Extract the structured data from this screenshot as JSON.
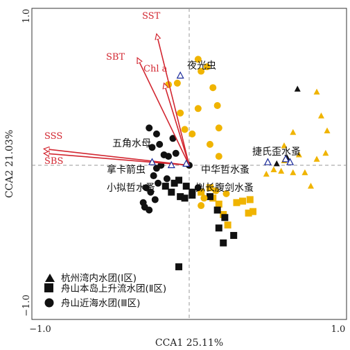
{
  "chart_data": {
    "type": "scatter",
    "xlabel": "CCA1 25.11%",
    "ylabel": "CCA2 21.03%",
    "xlim": [
      -1.0,
      1.0
    ],
    "ylim": [
      -1.0,
      1.0
    ],
    "xticks": [
      "−1.0",
      "1.0"
    ],
    "yticks": [
      "1.0",
      "−1.0"
    ],
    "grid": false,
    "legend_position": "bottom-left",
    "colors": {
      "accent": "#d22630",
      "orange": "#f0b400",
      "black": "#111111",
      "species": "#1a2a9a",
      "zero": "#999999"
    },
    "legend": [
      {
        "symbol": "triangle",
        "label": "杭州湾内水团(Ⅰ区)"
      },
      {
        "symbol": "square",
        "label": "舟山本岛上升流水团(Ⅱ区)"
      },
      {
        "symbol": "circle",
        "label": "舟山近海水团(Ⅲ区)"
      }
    ],
    "env_vectors": [
      {
        "name": "SST",
        "x": -0.22,
        "y": 0.88
      },
      {
        "name": "SBT",
        "x": -0.35,
        "y": 0.72
      },
      {
        "name": "Chl a",
        "x": -0.17,
        "y": 0.55
      },
      {
        "name": "SSS",
        "x": -0.98,
        "y": 0.11
      },
      {
        "name": "SBS",
        "x": -0.98,
        "y": 0.08
      }
    ],
    "species": [
      {
        "name": "夜光虫",
        "x": -0.06,
        "y": 0.6
      },
      {
        "name": "五角水母",
        "x": -0.25,
        "y": 0.02
      },
      {
        "name": "拿卡箭虫",
        "x": -0.12,
        "y": 0.0
      },
      {
        "name": "小拟哲水蚤",
        "x": -0.02,
        "y": 0.01
      },
      {
        "name": "中华哲水蚤",
        "x": 0.53,
        "y": 0.02
      },
      {
        "name": "拟长腹剑水蚤",
        "x": 0.65,
        "y": 0.04
      },
      {
        "name": "捷氏歪水蚤",
        "x": 0.68,
        "y": 0.02
      }
    ],
    "series": [
      {
        "name": "杭州湾内水团(Ⅰ区)",
        "symbol": "triangle",
        "points": [
          [
            0.86,
            0.49
          ],
          [
            0.89,
            0.33
          ],
          [
            0.93,
            0.23
          ],
          [
            0.7,
            0.22
          ],
          [
            0.86,
            0.04
          ],
          [
            0.92,
            0.08
          ],
          [
            0.64,
            0.03
          ],
          [
            0.7,
            -0.05
          ],
          [
            0.78,
            -0.05
          ],
          [
            0.82,
            -0.14
          ],
          [
            0.57,
            -0.03
          ],
          [
            0.52,
            -0.06
          ],
          [
            0.64,
            0.13
          ],
          [
            0.74,
            0.07
          ],
          [
            0.62,
            -0.04
          ]
        ]
      },
      {
        "name": "杭州湾内水团(Ⅰ区)",
        "symbol": "triangle",
        "points": [
          [
            0.73,
            0.51
          ],
          [
            0.59,
            0.01
          ],
          [
            0.66,
            0.05
          ]
        ]
      },
      {
        "name": "舟山本岛上升流水团(Ⅱ区)",
        "symbol": "square",
        "points": [
          [
            0.41,
            -0.23
          ],
          [
            0.36,
            -0.24
          ],
          [
            0.32,
            -0.25
          ],
          [
            0.4,
            -0.32
          ],
          [
            0.43,
            -0.31
          ],
          [
            0.14,
            -0.15
          ],
          [
            0.16,
            -0.22
          ],
          [
            0.08,
            -0.18
          ],
          [
            0.2,
            -0.26
          ],
          [
            0.23,
            -0.33
          ],
          [
            0.26,
            -0.4
          ]
        ]
      },
      {
        "name": "舟山本岛上升流水团(Ⅱ区)",
        "symbol": "square",
        "points": [
          [
            -0.02,
            -0.14
          ],
          [
            -0.07,
            -0.1
          ],
          [
            -0.1,
            -0.12
          ],
          [
            -0.12,
            -0.18
          ],
          [
            -0.16,
            -0.14
          ],
          [
            -0.06,
            -0.21
          ],
          [
            0.14,
            -0.21
          ],
          [
            0.02,
            -0.2
          ],
          [
            -0.03,
            -0.22
          ],
          [
            -0.07,
            -0.68
          ],
          [
            0.19,
            -0.3
          ],
          [
            0.24,
            -0.35
          ],
          [
            0.2,
            -0.42
          ],
          [
            0.3,
            -0.47
          ],
          [
            0.23,
            -0.52
          ],
          [
            0.02,
            -0.18
          ]
        ]
      },
      {
        "name": "舟山近海水团(Ⅲ区)",
        "symbol": "circle",
        "points": [
          [
            0.06,
            0.71
          ],
          [
            0.12,
            0.66
          ],
          [
            0.08,
            0.63
          ],
          [
            -0.08,
            0.55
          ],
          [
            -0.14,
            0.54
          ],
          [
            0.16,
            0.52
          ],
          [
            0.19,
            0.4
          ],
          [
            0.06,
            0.38
          ],
          [
            0.2,
            0.25
          ],
          [
            -0.06,
            0.35
          ],
          [
            -0.03,
            0.24
          ],
          [
            0.02,
            0.21
          ],
          [
            0.14,
            0.14
          ],
          [
            0.2,
            0.06
          ],
          [
            0.18,
            -0.17
          ],
          [
            0.25,
            -0.19
          ],
          [
            0.1,
            -0.22
          ],
          [
            0.08,
            -0.27
          ]
        ]
      },
      {
        "name": "舟山近海水团(Ⅲ区)",
        "symbol": "circle",
        "points": [
          [
            -0.27,
            0.25
          ],
          [
            -0.22,
            0.21
          ],
          [
            -0.09,
            0.08
          ],
          [
            -0.14,
            0.06
          ],
          [
            -0.17,
            0.07
          ],
          [
            -0.25,
            0.12
          ],
          [
            -0.2,
            0.14
          ],
          [
            -0.11,
            0.18
          ],
          [
            -0.22,
            -0.02
          ],
          [
            -0.24,
            -0.07
          ],
          [
            -0.21,
            -0.12
          ],
          [
            -0.15,
            -0.09
          ],
          [
            -0.26,
            -0.18
          ],
          [
            -0.29,
            -0.15
          ],
          [
            -0.31,
            -0.25
          ],
          [
            -0.23,
            -0.23
          ],
          [
            -0.3,
            -0.28
          ],
          [
            -0.27,
            -0.3
          ],
          [
            -0.19,
            0.0
          ],
          [
            0.0,
            0.0
          ],
          [
            0.06,
            -0.15
          ]
        ]
      }
    ]
  }
}
